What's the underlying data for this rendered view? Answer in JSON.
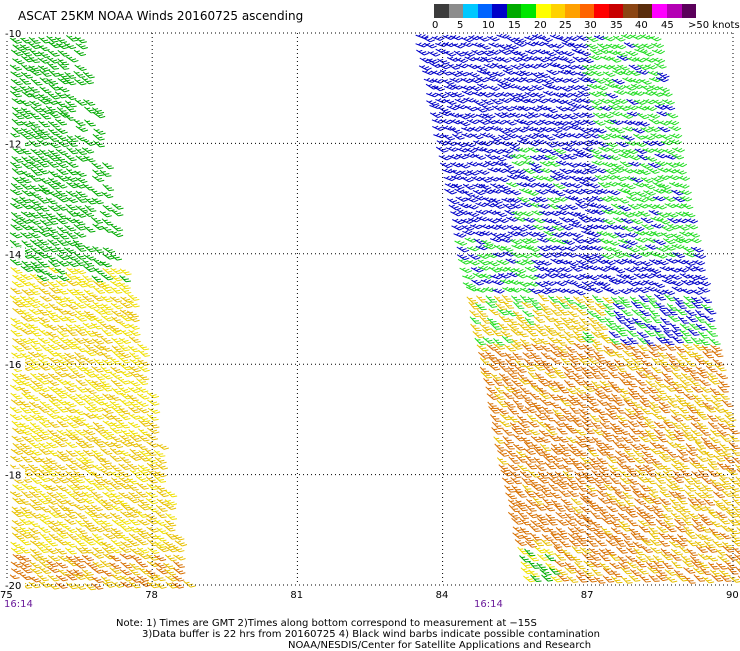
{
  "title": "ASCAT 25KM NOAA Winds 20160725 ascending",
  "legend": {
    "labels": [
      "0",
      "5",
      "10",
      "15",
      "20",
      "25",
      "30",
      "35",
      "40",
      "45",
      ">50 knots"
    ],
    "colors": [
      "#3c3c3c",
      "#8c8c8c",
      "#00c8ff",
      "#0064ff",
      "#0000c8",
      "#00aa00",
      "#00e600",
      "#ffff00",
      "#ffd200",
      "#ffa000",
      "#ff6400",
      "#ff0000",
      "#c80000",
      "#8b4513",
      "#5a2d0c",
      "#ff00ff",
      "#b400b4",
      "#5a005a"
    ]
  },
  "axes": {
    "lat_labels": [
      "-10",
      "-12",
      "-14",
      "-16",
      "-18",
      "-20"
    ],
    "lon_labels": [
      "75",
      "78",
      "81",
      "84",
      "87",
      "90"
    ],
    "lat_range": [
      -20,
      -10
    ],
    "lon_range": [
      75,
      90
    ],
    "grid": "dotted"
  },
  "swaths": [
    {
      "time_label": "16:14"
    },
    {
      "time_label": "16:14"
    }
  ],
  "wind_colors": {
    "green": "#00aa00",
    "bright_green": "#22dd22",
    "blue": "#0000c8",
    "yellow": "#f0e000",
    "gold": "#e8c000",
    "orange": "#d87000"
  },
  "notes": {
    "line1": "Note: 1) Times are GMT  2)Times along bottom correspond to measurement at −15S",
    "line2": "3)Data buffer is 22 hrs from 20160725  4) Black wind barbs indicate possible contamination",
    "line3": "NOAA/NESDIS/Center for Satellite Applications and Research"
  }
}
